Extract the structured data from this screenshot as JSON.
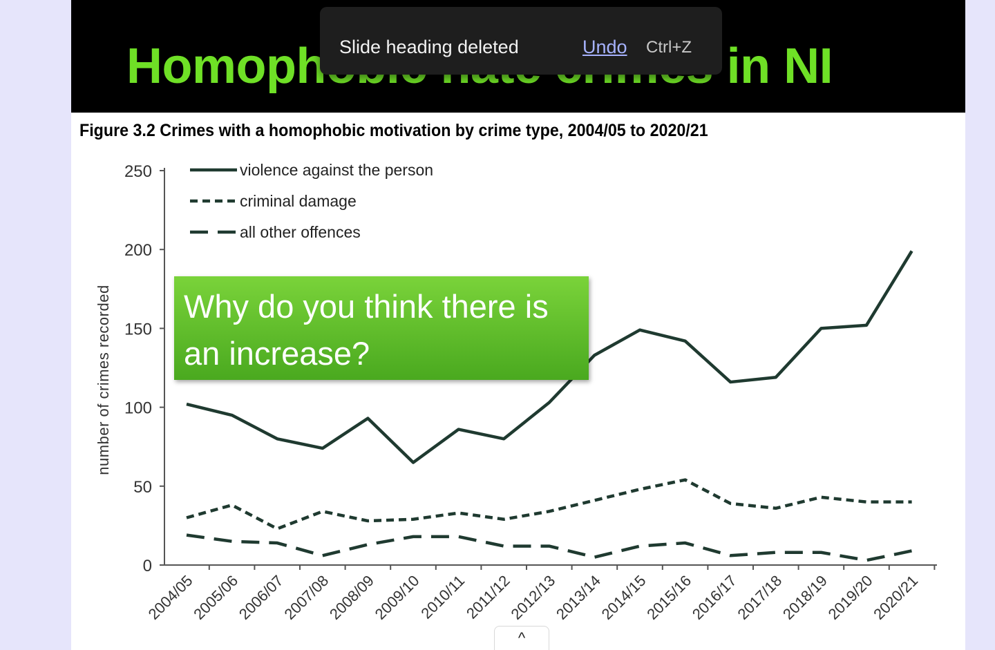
{
  "slide": {
    "title": "Homophobic hate crimes in NI",
    "figure_caption": "Figure 3.2  Crimes with a homophobic motivation by crime type, 2004/05 to 2020/21",
    "callout_text": "Why do you think there is an increase?"
  },
  "toast": {
    "message": "Slide heading deleted",
    "undo_label": "Undo",
    "shortcut": "Ctrl+Z"
  },
  "scroll_tab": {
    "icon": "chevron-up-icon",
    "glyph": "^"
  },
  "colors": {
    "page_background": "#e6e5fb",
    "title_band": "#000000",
    "title_text": "#6fe026",
    "callout_green": "#5fbe2c",
    "series_line": "#1f3a30",
    "toast_background": "#1e1e1e",
    "undo_link": "#a7b3ff"
  },
  "chart_data": {
    "type": "line",
    "title": "Figure 3.2  Crimes with a homophobic motivation by crime type, 2004/05 to 2020/21",
    "xlabel": "",
    "ylabel": "number of crimes recorded",
    "ylim": [
      0,
      250
    ],
    "yticks": [
      0,
      50,
      100,
      150,
      200,
      250
    ],
    "grid": false,
    "legend_position": "top-left",
    "categories": [
      "2004/05",
      "2005/06",
      "2006/07",
      "2007/08",
      "2008/09",
      "2009/10",
      "2010/11",
      "2011/12",
      "2012/13",
      "2013/14",
      "2014/15",
      "2015/16",
      "2016/17",
      "2017/18",
      "2018/19",
      "2019/20",
      "2020/21"
    ],
    "series": [
      {
        "name": "violence against the person",
        "dash": "solid",
        "values": [
          102,
          95,
          80,
          74,
          93,
          65,
          86,
          80,
          103,
          133,
          149,
          142,
          116,
          119,
          150,
          152,
          199
        ]
      },
      {
        "name": "criminal damage",
        "dash": "short",
        "values": [
          30,
          38,
          23,
          34,
          28,
          29,
          33,
          29,
          34,
          41,
          48,
          54,
          39,
          36,
          43,
          40,
          40
        ]
      },
      {
        "name": "all other offences",
        "dash": "long",
        "values": [
          19,
          15,
          14,
          6,
          13,
          18,
          18,
          12,
          12,
          5,
          12,
          14,
          6,
          8,
          8,
          3,
          9
        ]
      }
    ]
  }
}
